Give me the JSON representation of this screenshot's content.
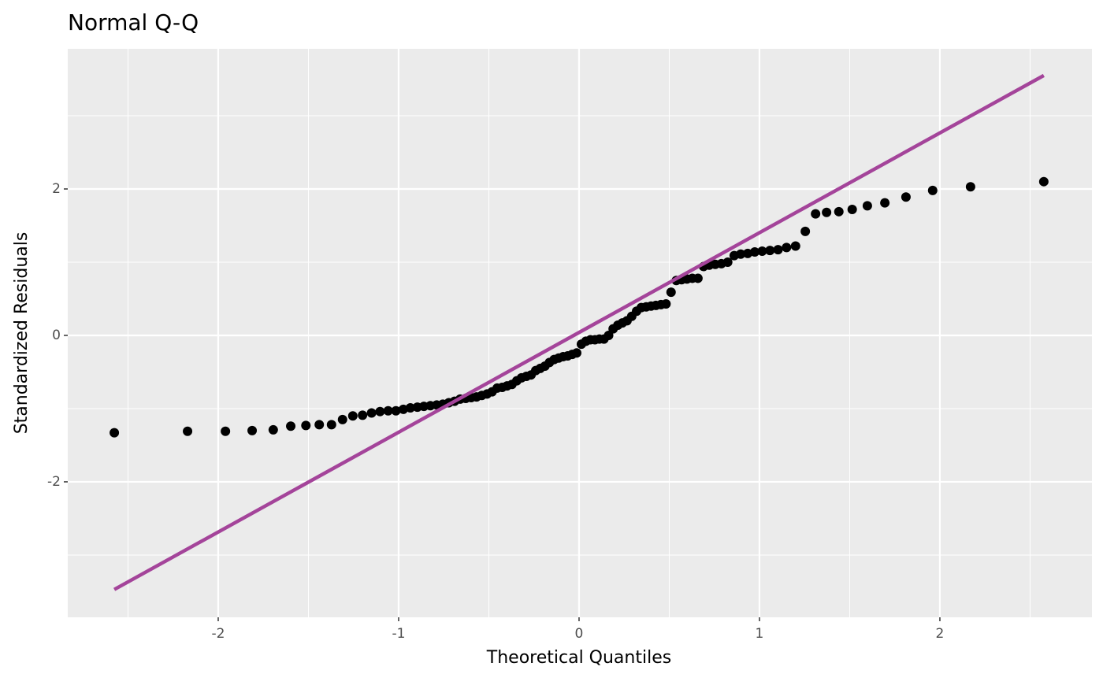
{
  "chart_data": {
    "type": "scatter",
    "title": "Normal Q-Q",
    "x_label": "Theoretical Quantiles",
    "y_label": "Standardized Residuals",
    "xlim": [
      -2.834,
      2.843
    ],
    "ylim": [
      -3.85,
      3.914
    ],
    "xticks": [
      -2,
      -1,
      0,
      1,
      2
    ],
    "yticks": [
      -2,
      0,
      2
    ],
    "grid": true,
    "series": [
      {
        "type": "scatter",
        "color": "#000000",
        "x": [
          -2.576,
          -2.17,
          -1.96,
          -1.812,
          -1.695,
          -1.598,
          -1.514,
          -1.44,
          -1.372,
          -1.311,
          -1.254,
          -1.2,
          -1.15,
          -1.103,
          -1.058,
          -1.015,
          -0.974,
          -0.935,
          -0.896,
          -0.86,
          -0.824,
          -0.789,
          -0.755,
          -0.722,
          -0.69,
          -0.659,
          -0.628,
          -0.598,
          -0.568,
          -0.539,
          -0.51,
          -0.482,
          -0.454,
          -0.426,
          -0.399,
          -0.372,
          -0.345,
          -0.319,
          -0.292,
          -0.266,
          -0.24,
          -0.215,
          -0.189,
          -0.164,
          -0.138,
          -0.113,
          -0.088,
          -0.063,
          -0.038,
          -0.013,
          0.013,
          0.038,
          0.063,
          0.088,
          0.113,
          0.138,
          0.164,
          0.189,
          0.215,
          0.24,
          0.266,
          0.292,
          0.319,
          0.345,
          0.372,
          0.399,
          0.426,
          0.454,
          0.482,
          0.51,
          0.539,
          0.568,
          0.598,
          0.628,
          0.659,
          0.69,
          0.722,
          0.755,
          0.789,
          0.824,
          0.86,
          0.896,
          0.935,
          0.974,
          1.015,
          1.058,
          1.103,
          1.15,
          1.2,
          1.254,
          1.311,
          1.372,
          1.44,
          1.514,
          1.598,
          1.695,
          1.812,
          1.96,
          2.17,
          2.576
        ],
        "values": [
          -1.33,
          -1.31,
          -1.31,
          -1.3,
          -1.29,
          -1.24,
          -1.23,
          -1.22,
          -1.22,
          -1.15,
          -1.1,
          -1.09,
          -1.06,
          -1.04,
          -1.03,
          -1.03,
          -1.01,
          -0.99,
          -0.98,
          -0.97,
          -0.96,
          -0.95,
          -0.94,
          -0.92,
          -0.9,
          -0.87,
          -0.86,
          -0.85,
          -0.84,
          -0.82,
          -0.8,
          -0.77,
          -0.72,
          -0.71,
          -0.69,
          -0.67,
          -0.62,
          -0.58,
          -0.56,
          -0.54,
          -0.48,
          -0.45,
          -0.42,
          -0.37,
          -0.33,
          -0.31,
          -0.29,
          -0.28,
          -0.26,
          -0.24,
          -0.12,
          -0.08,
          -0.06,
          -0.06,
          -0.05,
          -0.05,
          0.0,
          0.09,
          0.14,
          0.17,
          0.2,
          0.26,
          0.33,
          0.38,
          0.39,
          0.4,
          0.41,
          0.42,
          0.43,
          0.59,
          0.75,
          0.76,
          0.77,
          0.78,
          0.78,
          0.94,
          0.96,
          0.97,
          0.98,
          1.0,
          1.09,
          1.11,
          1.12,
          1.14,
          1.15,
          1.16,
          1.17,
          1.2,
          1.22,
          1.42,
          1.66,
          1.68,
          1.69,
          1.72,
          1.77,
          1.81,
          1.89,
          1.98,
          2.03,
          2.1
        ]
      },
      {
        "type": "line",
        "color": "#a4449a",
        "x": [
          -2.576,
          2.576
        ],
        "values": [
          -3.47,
          3.55
        ]
      }
    ]
  }
}
